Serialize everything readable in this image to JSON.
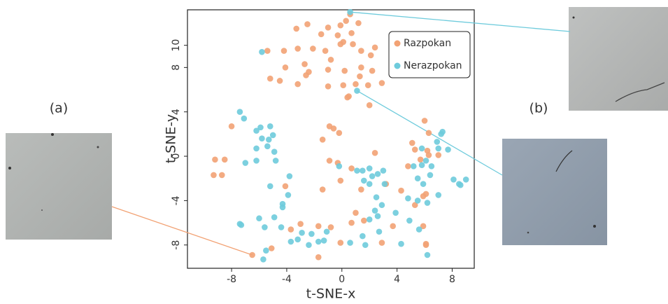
{
  "chart_data": {
    "type": "scatter",
    "xlabel": "t-SNE-x",
    "ylabel": "t-SNE-y",
    "xlim": [
      -11.2,
      9.6
    ],
    "ylim": [
      -10.1,
      13.2
    ],
    "xticks": [
      -8,
      -4,
      0,
      4,
      8
    ],
    "yticks": [
      -8,
      -4,
      0,
      4,
      8,
      10
    ],
    "legend": "upper right",
    "annotations": [
      "(a)",
      "(b)"
    ],
    "series": [
      {
        "name": "Razpokan",
        "color": "#f2a274",
        "x": [
          -6.5,
          0.6,
          1.2,
          -2.5,
          -3.3,
          -1.0,
          -0.1,
          0.3,
          -1.5,
          -0.3,
          0.7,
          -5.4,
          -4.2,
          -3.2,
          -2.1,
          -1.2,
          -0.1,
          0.1,
          0.8,
          1.4,
          2.1,
          2.4,
          -4.1,
          -2.7,
          -0.8,
          0.2,
          1.4,
          2.2,
          -5.2,
          -4.5,
          -2.6,
          -2.4,
          -1.0,
          -1.0,
          0.1,
          1.0,
          1.9,
          2.9,
          -3.2,
          0.4,
          0.5,
          1.3,
          2.0,
          -8.0,
          -9.2,
          -8.5,
          -9.3,
          -8.7,
          -0.9,
          -0.6,
          -0.2,
          -1.4,
          -0.9,
          -0.3,
          -0.1,
          -1.4,
          -4.1,
          6.0,
          6.3,
          5.1,
          5.3,
          6.2,
          4.8,
          7.0,
          6.3,
          5.7,
          2.4,
          0.7,
          1.4,
          3.2,
          4.3,
          5.9,
          5.3,
          6.1,
          -3.7,
          -3.0,
          -1.7,
          -0.8,
          0.7,
          1.0,
          1.6,
          -0.1,
          -1.7,
          -5.1,
          3.7,
          2.9,
          6.1,
          6.1,
          5.9
        ],
        "y": [
          -8.9,
          12.8,
          12.0,
          11.9,
          11.5,
          11.6,
          11.8,
          12.2,
          11.0,
          10.9,
          11.1,
          9.5,
          9.5,
          9.7,
          9.7,
          9.5,
          10.1,
          10.3,
          10.1,
          9.5,
          9.1,
          9.8,
          8.0,
          8.3,
          8.7,
          7.7,
          8.0,
          7.7,
          7.0,
          6.8,
          7.3,
          7.6,
          6.3,
          7.8,
          6.4,
          6.5,
          6.4,
          6.6,
          6.5,
          5.3,
          5.4,
          7.2,
          4.6,
          2.7,
          -0.3,
          -0.3,
          -1.7,
          -1.7,
          2.7,
          2.5,
          2.1,
          1.5,
          -0.4,
          -0.6,
          -2.2,
          -3.0,
          -2.7,
          3.2,
          2.1,
          1.2,
          0.6,
          0.5,
          -0.9,
          0.1,
          0.1,
          -0.3,
          0.3,
          -1.1,
          -3.0,
          -2.5,
          -3.1,
          -3.6,
          -4.4,
          -3.4,
          -6.6,
          -6.1,
          -6.3,
          -6.4,
          -6.0,
          -5.1,
          -5.8,
          -7.8,
          -9.1,
          -8.3,
          -6.3,
          -7.8,
          -7.9,
          -8.0,
          -6.3
        ]
      },
      {
        "name": "Nerazpokan",
        "color": "#6ecbdc",
        "x": [
          0.6,
          1.1,
          -5.8,
          -7.4,
          -7.1,
          -6.2,
          -5.9,
          -5.2,
          -5.0,
          -5.8,
          -5.3,
          -6.2,
          -5.4,
          -4.9,
          -6.2,
          -7.0,
          -4.8,
          -3.8,
          -5.2,
          -3.9,
          -4.3,
          -4.3,
          -4.9,
          -6.0,
          -7.4,
          -7.3,
          -5.6,
          -4.4,
          -3.2,
          -3.7,
          -2.9,
          -2.2,
          -1.1,
          -1.3,
          -2.4,
          -5.7,
          -5.5,
          -1.7,
          -0.2,
          1.1,
          1.5,
          1.6,
          2.0,
          2.2,
          2.6,
          3.0,
          3.1,
          2.0,
          2.5,
          2.4,
          2.6,
          2.9,
          1.5,
          2.0,
          2.7,
          4.3,
          3.9,
          4.9,
          5.6,
          4.8,
          5.5,
          6.2,
          5.9,
          5.5,
          6.4,
          5.8,
          5.2,
          5.8,
          6.1,
          6.5,
          7.0,
          6.9,
          7.2,
          7.3,
          7.7,
          7.0,
          8.1,
          8.5,
          8.6,
          9.0,
          6.2,
          1.7,
          0.6
        ],
        "y": [
          13.0,
          5.9,
          9.4,
          4.0,
          3.4,
          2.3,
          2.6,
          2.7,
          1.9,
          1.6,
          1.5,
          0.7,
          0.9,
          0.4,
          -0.4,
          -0.6,
          -0.4,
          -1.8,
          -2.7,
          -3.5,
          -4.3,
          -4.6,
          -5.5,
          -5.6,
          -6.1,
          -6.2,
          -6.4,
          -6.4,
          -7.5,
          -7.7,
          -6.9,
          -7.0,
          -6.8,
          -7.6,
          -8.0,
          -9.3,
          -8.5,
          -7.7,
          -0.9,
          -1.3,
          -1.3,
          -2.2,
          -1.1,
          -1.8,
          -1.6,
          -1.3,
          -2.5,
          -2.5,
          -3.7,
          -4.9,
          -5.4,
          -4.4,
          -7.2,
          -5.7,
          -6.8,
          -7.9,
          -5.1,
          -5.8,
          -6.6,
          -3.8,
          -4.0,
          -4.2,
          -2.5,
          -2.0,
          -1.7,
          -0.8,
          -0.9,
          0.7,
          -0.4,
          -0.9,
          0.7,
          1.3,
          2.0,
          2.2,
          0.6,
          -3.5,
          -2.1,
          -2.5,
          -2.6,
          -2.1,
          -8.9,
          -8.0,
          -7.8
        ]
      }
    ]
  }
}
